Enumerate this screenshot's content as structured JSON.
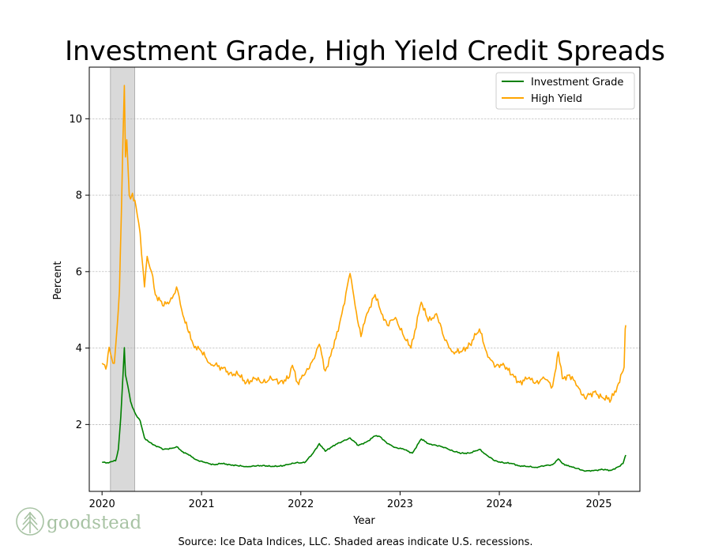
{
  "brand": {
    "logo_text": "goodstead",
    "logo_color": "#a8c3a4"
  },
  "caption": "Source: Ice Data Indices, LLC. Shaded areas indicate U.S. recessions.",
  "chart_data": {
    "type": "line",
    "title": "Investment Grade, High Yield Credit Spreads",
    "xlabel": "Year",
    "ylabel": "Percent",
    "xlim": [
      "2019-11-15",
      "2025-06-01"
    ],
    "ylim": [
      0.25,
      11.35
    ],
    "xticks": [
      "2020-01-01",
      "2021-01-01",
      "2022-01-01",
      "2023-01-01",
      "2024-01-01",
      "2025-01-01"
    ],
    "xtick_labels": [
      "2020",
      "2021",
      "2022",
      "2023",
      "2024",
      "2025"
    ],
    "yticks": [
      2,
      4,
      6,
      8,
      10
    ],
    "ytick_labels": [
      "2",
      "4",
      "6",
      "8",
      "10"
    ],
    "grid": "horizontal dashed",
    "legend_position": "top-right",
    "recessions": [
      {
        "start": "2020-02-01",
        "end": "2020-04-30"
      }
    ],
    "recession_color": "#d9d9d9",
    "series": [
      {
        "name": "Investment Grade",
        "color": "#008000",
        "points": [
          [
            "2020-01-01",
            1.01
          ],
          [
            "2020-01-20",
            1.0
          ],
          [
            "2020-02-05",
            1.03
          ],
          [
            "2020-02-20",
            1.05
          ],
          [
            "2020-03-01",
            1.35
          ],
          [
            "2020-03-10",
            2.2
          ],
          [
            "2020-03-18",
            3.3
          ],
          [
            "2020-03-23",
            4.01
          ],
          [
            "2020-03-27",
            3.3
          ],
          [
            "2020-04-05",
            3.0
          ],
          [
            "2020-04-15",
            2.6
          ],
          [
            "2020-04-22",
            2.45
          ],
          [
            "2020-05-05",
            2.25
          ],
          [
            "2020-05-20",
            2.1
          ],
          [
            "2020-06-05",
            1.65
          ],
          [
            "2020-06-20",
            1.55
          ],
          [
            "2020-07-15",
            1.45
          ],
          [
            "2020-08-15",
            1.35
          ],
          [
            "2020-09-15",
            1.38
          ],
          [
            "2020-10-01",
            1.42
          ],
          [
            "2020-10-20",
            1.3
          ],
          [
            "2020-11-15",
            1.2
          ],
          [
            "2020-12-15",
            1.07
          ],
          [
            "2021-01-15",
            1.0
          ],
          [
            "2021-02-15",
            0.95
          ],
          [
            "2021-03-15",
            0.98
          ],
          [
            "2021-04-15",
            0.95
          ],
          [
            "2021-05-15",
            0.92
          ],
          [
            "2021-06-15",
            0.9
          ],
          [
            "2021-07-15",
            0.91
          ],
          [
            "2021-08-15",
            0.93
          ],
          [
            "2021-09-15",
            0.9
          ],
          [
            "2021-10-15",
            0.91
          ],
          [
            "2021-11-15",
            0.95
          ],
          [
            "2021-12-15",
            1.0
          ],
          [
            "2022-01-15",
            1.0
          ],
          [
            "2022-02-15",
            1.25
          ],
          [
            "2022-03-10",
            1.5
          ],
          [
            "2022-04-01",
            1.3
          ],
          [
            "2022-05-01",
            1.45
          ],
          [
            "2022-06-01",
            1.55
          ],
          [
            "2022-07-01",
            1.65
          ],
          [
            "2022-08-01",
            1.45
          ],
          [
            "2022-09-01",
            1.55
          ],
          [
            "2022-10-01",
            1.7
          ],
          [
            "2022-10-20",
            1.68
          ],
          [
            "2022-11-15",
            1.5
          ],
          [
            "2022-12-15",
            1.4
          ],
          [
            "2023-01-15",
            1.35
          ],
          [
            "2023-02-15",
            1.25
          ],
          [
            "2023-03-20",
            1.62
          ],
          [
            "2023-04-15",
            1.5
          ],
          [
            "2023-05-15",
            1.45
          ],
          [
            "2023-06-15",
            1.4
          ],
          [
            "2023-07-15",
            1.3
          ],
          [
            "2023-08-15",
            1.25
          ],
          [
            "2023-09-15",
            1.25
          ],
          [
            "2023-10-20",
            1.35
          ],
          [
            "2023-11-15",
            1.2
          ],
          [
            "2023-12-15",
            1.05
          ],
          [
            "2024-01-15",
            1.0
          ],
          [
            "2024-02-15",
            0.98
          ],
          [
            "2024-03-15",
            0.92
          ],
          [
            "2024-04-15",
            0.9
          ],
          [
            "2024-05-15",
            0.88
          ],
          [
            "2024-06-15",
            0.92
          ],
          [
            "2024-07-15",
            0.95
          ],
          [
            "2024-08-05",
            1.1
          ],
          [
            "2024-08-20",
            0.98
          ],
          [
            "2024-09-15",
            0.9
          ],
          [
            "2024-10-15",
            0.85
          ],
          [
            "2024-11-10",
            0.78
          ],
          [
            "2024-12-15",
            0.8
          ],
          [
            "2025-01-15",
            0.82
          ],
          [
            "2025-02-15",
            0.8
          ],
          [
            "2025-03-15",
            0.9
          ],
          [
            "2025-03-31",
            0.98
          ],
          [
            "2025-04-07",
            1.15
          ],
          [
            "2025-04-10",
            1.2
          ]
        ]
      },
      {
        "name": "High Yield",
        "color": "#ffa500",
        "points": [
          [
            "2020-01-01",
            3.6
          ],
          [
            "2020-01-15",
            3.45
          ],
          [
            "2020-01-27",
            4.02
          ],
          [
            "2020-02-05",
            3.75
          ],
          [
            "2020-02-15",
            3.6
          ],
          [
            "2020-02-25",
            4.5
          ],
          [
            "2020-03-05",
            5.5
          ],
          [
            "2020-03-12",
            7.5
          ],
          [
            "2020-03-18",
            9.5
          ],
          [
            "2020-03-23",
            10.87
          ],
          [
            "2020-03-27",
            9.0
          ],
          [
            "2020-04-01",
            9.45
          ],
          [
            "2020-04-10",
            8.0
          ],
          [
            "2020-04-15",
            7.9
          ],
          [
            "2020-04-22",
            8.05
          ],
          [
            "2020-05-05",
            7.7
          ],
          [
            "2020-05-20",
            7.0
          ],
          [
            "2020-06-05",
            5.6
          ],
          [
            "2020-06-15",
            6.4
          ],
          [
            "2020-07-01",
            6.0
          ],
          [
            "2020-07-15",
            5.4
          ],
          [
            "2020-08-15",
            5.1
          ],
          [
            "2020-09-15",
            5.3
          ],
          [
            "2020-10-01",
            5.6
          ],
          [
            "2020-10-20",
            5.0
          ],
          [
            "2020-11-10",
            4.5
          ],
          [
            "2020-12-01",
            4.1
          ],
          [
            "2021-01-01",
            3.9
          ],
          [
            "2021-02-01",
            3.6
          ],
          [
            "2021-03-15",
            3.5
          ],
          [
            "2021-04-15",
            3.35
          ],
          [
            "2021-05-15",
            3.3
          ],
          [
            "2021-06-15",
            3.1
          ],
          [
            "2021-07-15",
            3.2
          ],
          [
            "2021-08-15",
            3.1
          ],
          [
            "2021-09-15",
            3.2
          ],
          [
            "2021-10-15",
            3.1
          ],
          [
            "2021-11-15",
            3.2
          ],
          [
            "2021-12-01",
            3.55
          ],
          [
            "2021-12-20",
            3.1
          ],
          [
            "2022-01-15",
            3.3
          ],
          [
            "2022-02-15",
            3.7
          ],
          [
            "2022-03-10",
            4.1
          ],
          [
            "2022-04-01",
            3.4
          ],
          [
            "2022-05-01",
            4.0
          ],
          [
            "2022-06-01",
            4.9
          ],
          [
            "2022-07-01",
            5.95
          ],
          [
            "2022-07-20",
            5.1
          ],
          [
            "2022-08-10",
            4.3
          ],
          [
            "2022-09-01",
            4.9
          ],
          [
            "2022-10-01",
            5.4
          ],
          [
            "2022-10-20",
            5.0
          ],
          [
            "2022-11-15",
            4.6
          ],
          [
            "2022-12-15",
            4.8
          ],
          [
            "2023-01-15",
            4.3
          ],
          [
            "2023-02-10",
            4.0
          ],
          [
            "2023-03-20",
            5.2
          ],
          [
            "2023-04-15",
            4.7
          ],
          [
            "2023-05-15",
            4.9
          ],
          [
            "2023-06-15",
            4.2
          ],
          [
            "2023-07-15",
            3.9
          ],
          [
            "2023-08-15",
            3.9
          ],
          [
            "2023-09-15",
            4.1
          ],
          [
            "2023-10-20",
            4.5
          ],
          [
            "2023-11-15",
            3.9
          ],
          [
            "2023-12-15",
            3.5
          ],
          [
            "2024-01-15",
            3.6
          ],
          [
            "2024-02-15",
            3.3
          ],
          [
            "2024-03-15",
            3.1
          ],
          [
            "2024-04-15",
            3.2
          ],
          [
            "2024-05-15",
            3.1
          ],
          [
            "2024-06-15",
            3.2
          ],
          [
            "2024-07-15",
            3.0
          ],
          [
            "2024-08-05",
            3.9
          ],
          [
            "2024-08-20",
            3.2
          ],
          [
            "2024-09-15",
            3.3
          ],
          [
            "2024-10-15",
            3.0
          ],
          [
            "2024-11-10",
            2.7
          ],
          [
            "2024-12-15",
            2.85
          ],
          [
            "2025-01-15",
            2.7
          ],
          [
            "2025-02-15",
            2.65
          ],
          [
            "2025-03-10",
            3.0
          ],
          [
            "2025-03-31",
            3.4
          ],
          [
            "2025-04-04",
            3.5
          ],
          [
            "2025-04-08",
            4.5
          ],
          [
            "2025-04-10",
            4.6
          ]
        ]
      }
    ]
  }
}
